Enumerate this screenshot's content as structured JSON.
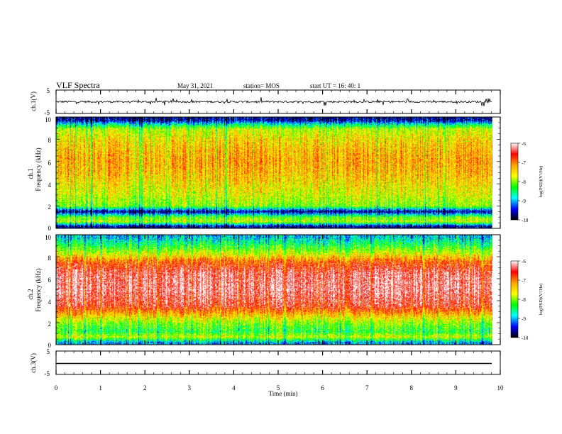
{
  "header": {
    "title": "VLF Spectra",
    "date": "May 31, 2021",
    "station": "station= MOS",
    "start_ut": "start  UT =   16: 40: 1"
  },
  "panels": {
    "ch1_wave": {
      "ylabel": "ch.1(V)",
      "ticks": [
        "5",
        "-5"
      ]
    },
    "ch1_spec": {
      "ylabel_line1": "ch.1",
      "ylabel_line2": "Frequency  (kHz)",
      "ticks": [
        "10",
        "8",
        "6",
        "4",
        "2",
        "0"
      ]
    },
    "ch2_spec": {
      "ylabel_line1": "ch.2",
      "ylabel_line2": "Frequency  (kHz)",
      "ticks": [
        "10",
        "8",
        "6",
        "4",
        "2",
        "0"
      ]
    },
    "ch3_wave": {
      "ylabel": "ch.3(V)",
      "ticks": [
        "5",
        "-5"
      ]
    }
  },
  "colorbar": {
    "label": "log(PSD)(V²/Hz)",
    "ticks": [
      "-6",
      "-7",
      "-8",
      "-9",
      "-10"
    ],
    "colors": [
      "#ffffff",
      "#ff0000",
      "#ffa500",
      "#ffff00",
      "#00ff00",
      "#00ffff",
      "#0000ff",
      "#000000"
    ]
  },
  "xaxis": {
    "label": "Time  (min)",
    "ticks": [
      "0",
      "1",
      "2",
      "3",
      "4",
      "5",
      "6",
      "7",
      "8",
      "9",
      "10"
    ]
  },
  "chart_data": {
    "type": "heatmap",
    "title": "VLF Spectra",
    "x_range": [
      0,
      10
    ],
    "x_data_end": 9.82,
    "xlabel": "Time  (min)",
    "ch1_voltage_range": [
      -5,
      5
    ],
    "ch3_voltage_range": [
      -5,
      5
    ],
    "frequency_range_khz": [
      0,
      10
    ],
    "log_psd_range": [
      -10,
      -6
    ],
    "ch1_spectrum_profile": [
      {
        "freq_khz": 0.2,
        "log_psd": -9.6
      },
      {
        "freq_khz": 0.6,
        "log_psd": -7.8
      },
      {
        "freq_khz": 1.0,
        "log_psd": -8.1
      },
      {
        "freq_khz": 1.5,
        "log_psd": -9.7
      },
      {
        "freq_khz": 2.0,
        "log_psd": -8.0
      },
      {
        "freq_khz": 3.0,
        "log_psd": -7.7
      },
      {
        "freq_khz": 4.0,
        "log_psd": -7.5
      },
      {
        "freq_khz": 5.0,
        "log_psd": -7.3
      },
      {
        "freq_khz": 6.0,
        "log_psd": -7.2
      },
      {
        "freq_khz": 7.0,
        "log_psd": -7.3
      },
      {
        "freq_khz": 8.0,
        "log_psd": -7.5
      },
      {
        "freq_khz": 8.9,
        "log_psd": -7.8
      },
      {
        "freq_khz": 9.3,
        "log_psd": -8.6
      },
      {
        "freq_khz": 9.7,
        "log_psd": -9.6
      }
    ],
    "ch2_spectrum_profile": [
      {
        "freq_khz": 0.2,
        "log_psd": -9.0
      },
      {
        "freq_khz": 0.7,
        "log_psd": -7.7
      },
      {
        "freq_khz": 1.2,
        "log_psd": -8.3
      },
      {
        "freq_khz": 2.0,
        "log_psd": -7.9
      },
      {
        "freq_khz": 2.7,
        "log_psd": -7.3
      },
      {
        "freq_khz": 3.5,
        "log_psd": -6.5
      },
      {
        "freq_khz": 5.0,
        "log_psd": -6.2
      },
      {
        "freq_khz": 6.5,
        "log_psd": -6.3
      },
      {
        "freq_khz": 7.5,
        "log_psd": -6.8
      },
      {
        "freq_khz": 8.2,
        "log_psd": -7.6
      },
      {
        "freq_khz": 9.0,
        "log_psd": -8.3
      },
      {
        "freq_khz": 9.8,
        "log_psd": -8.9
      }
    ]
  }
}
